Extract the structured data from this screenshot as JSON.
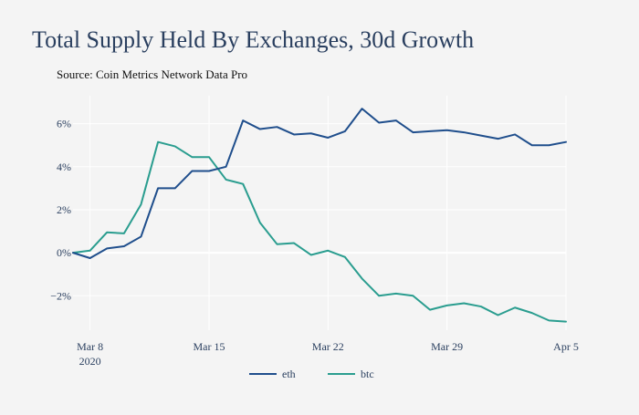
{
  "chart_data": {
    "type": "line",
    "title": "Total Supply Held By Exchanges, 30d Growth",
    "subtitle": "Source: Coin Metrics Network Data Pro",
    "xlabel": "",
    "ylabel": "",
    "x": [
      "2020-03-07",
      "2020-03-08",
      "2020-03-09",
      "2020-03-10",
      "2020-03-11",
      "2020-03-12",
      "2020-03-13",
      "2020-03-14",
      "2020-03-15",
      "2020-03-16",
      "2020-03-17",
      "2020-03-18",
      "2020-03-19",
      "2020-03-20",
      "2020-03-21",
      "2020-03-22",
      "2020-03-23",
      "2020-03-24",
      "2020-03-25",
      "2020-03-26",
      "2020-03-27",
      "2020-03-28",
      "2020-03-29",
      "2020-03-30",
      "2020-03-31",
      "2020-04-01",
      "2020-04-02",
      "2020-04-03",
      "2020-04-04",
      "2020-04-05"
    ],
    "xlim": [
      "2020-03-07",
      "2020-04-05"
    ],
    "ylim": [
      -3.6,
      7.3
    ],
    "x_ticks": [
      {
        "value": "2020-03-08",
        "label": "Mar 8",
        "sublabel": "2020"
      },
      {
        "value": "2020-03-15",
        "label": "Mar 15",
        "sublabel": ""
      },
      {
        "value": "2020-03-22",
        "label": "Mar 22",
        "sublabel": ""
      },
      {
        "value": "2020-03-29",
        "label": "Mar 29",
        "sublabel": ""
      },
      {
        "value": "2020-04-05",
        "label": "Apr 5",
        "sublabel": ""
      }
    ],
    "y_ticks": [
      {
        "value": -2,
        "label": "−2%"
      },
      {
        "value": 0,
        "label": "0%"
      },
      {
        "value": 2,
        "label": "2%"
      },
      {
        "value": 4,
        "label": "4%"
      },
      {
        "value": 6,
        "label": "6%"
      }
    ],
    "grid": true,
    "legend_position": "bottom-center",
    "series": [
      {
        "name": "eth",
        "color": "#1f4e8c",
        "values": [
          0.0,
          -0.25,
          0.2,
          0.3,
          0.75,
          3.0,
          3.0,
          3.8,
          3.8,
          4.0,
          6.15,
          5.75,
          5.85,
          5.5,
          5.55,
          5.35,
          5.65,
          6.7,
          6.05,
          6.15,
          5.6,
          5.65,
          5.7,
          5.6,
          5.45,
          5.3,
          5.5,
          5.0,
          5.0,
          5.15
        ]
      },
      {
        "name": "btc",
        "color": "#2a9d8f",
        "values": [
          0.0,
          0.1,
          0.95,
          0.9,
          2.25,
          5.15,
          4.95,
          4.45,
          4.45,
          3.4,
          3.2,
          1.4,
          0.4,
          0.45,
          -0.1,
          0.1,
          -0.2,
          -1.2,
          -2.0,
          -1.9,
          -2.0,
          -2.65,
          -2.45,
          -2.35,
          -2.5,
          -2.9,
          -2.55,
          -2.8,
          -3.15,
          -3.2
        ]
      }
    ]
  }
}
